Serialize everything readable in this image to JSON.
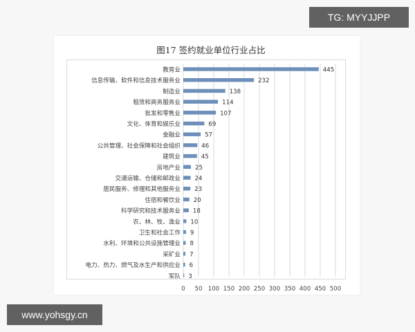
{
  "watermark_top_right": "TG: MYYJJPP",
  "watermark_bottom_left": "www.yohsgy.cn",
  "chart_data": {
    "type": "bar",
    "orientation": "horizontal",
    "title": "图17 签约就业单位行业占比",
    "categories": [
      "教育业",
      "信息传输、软件和信息技术服务业",
      "制造业",
      "租赁和商务服务业",
      "批发和零售业",
      "文化、体育和娱乐业",
      "金融业",
      "公共管理、社会保障和社会组织",
      "建筑业",
      "房地产业",
      "交通运输、仓储和邮政业",
      "居民服务、修理和其他服务业",
      "住宿和餐饮业",
      "科学研究和技术服务业",
      "农、林、牧、渔业",
      "卫生和社会工作",
      "水利、环境和公共设施管理业",
      "采矿业",
      "电力、热力、燃气及水生产和供应业",
      "军队"
    ],
    "values": [
      445,
      232,
      138,
      114,
      107,
      69,
      57,
      46,
      45,
      25,
      24,
      23,
      20,
      18,
      10,
      9,
      8,
      7,
      6,
      3
    ],
    "xlim": [
      0,
      500
    ],
    "xticks": [
      0,
      50,
      100,
      150,
      200,
      250,
      300,
      350,
      400,
      450,
      500
    ],
    "grid": "vertical",
    "bar_color": "#6d8fba",
    "grid_color": "#d9d9d9",
    "xlabel": "",
    "ylabel": ""
  }
}
